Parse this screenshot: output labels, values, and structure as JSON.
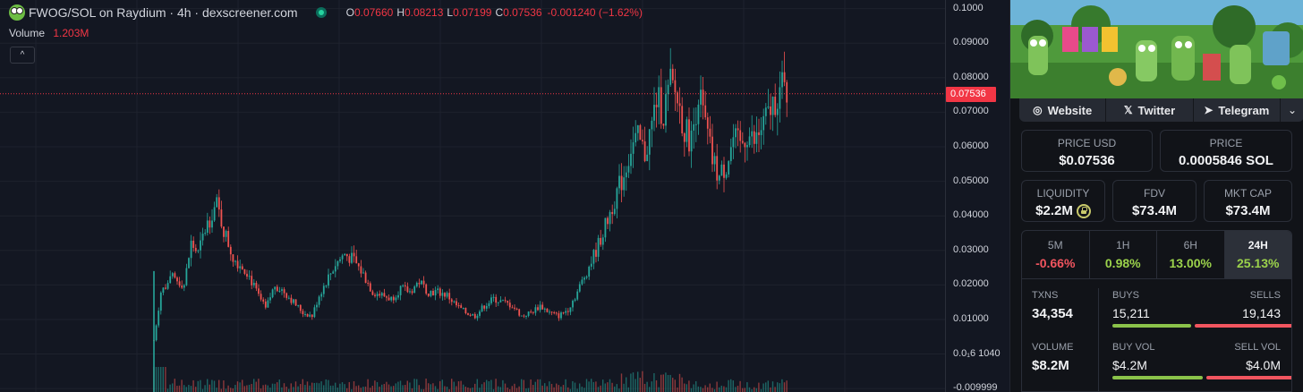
{
  "legend": {
    "pair_title": "FWOG/SOL on Raydium · 4h · dexscreener.com",
    "ohlc": [
      {
        "key": "O",
        "value": "0.07660"
      },
      {
        "key": "H",
        "value": "0.08213"
      },
      {
        "key": "L",
        "value": "0.07199"
      },
      {
        "key": "C",
        "value": "0.07536"
      }
    ],
    "change": "-0.001240 (−1.62%)",
    "volume_label": "Volume",
    "volume_value": "1.203M",
    "collapse_icon": "chevron-up-icon",
    "collapse_glyph": "^"
  },
  "axis": {
    "current_price": "0.07536",
    "ticks": [
      {
        "label": "0.1000",
        "v": 0.1
      },
      {
        "label": "0.09000",
        "v": 0.09
      },
      {
        "label": "0.08000",
        "v": 0.08
      },
      {
        "label": "0.07000",
        "v": 0.07
      },
      {
        "label": "0.06000",
        "v": 0.06
      },
      {
        "label": "0.05000",
        "v": 0.05
      },
      {
        "label": "0.04000",
        "v": 0.04
      },
      {
        "label": "0.03000",
        "v": 0.03
      },
      {
        "label": "0.02000",
        "v": 0.02
      },
      {
        "label": "0.01000",
        "v": 0.01
      },
      {
        "label": "0.0₁6 1040",
        "v": 0.0
      },
      {
        "label": "-0.009999",
        "v": -0.01
      }
    ]
  },
  "chart_data": {
    "type": "candlestick",
    "interval": "4h",
    "current_price": 0.07536,
    "ylim": [
      -0.011,
      0.1025
    ],
    "up_color": "#26a69a",
    "down_color": "#ef5350",
    "anchors": [
      [
        0,
        0.004
      ],
      [
        3,
        0.018
      ],
      [
        8,
        0.022
      ],
      [
        13,
        0.02
      ],
      [
        16,
        0.032
      ],
      [
        19,
        0.029
      ],
      [
        22,
        0.036
      ],
      [
        25,
        0.041
      ],
      [
        27,
        0.043
      ],
      [
        30,
        0.036
      ],
      [
        34,
        0.028
      ],
      [
        40,
        0.024
      ],
      [
        44,
        0.018
      ],
      [
        48,
        0.013
      ],
      [
        52,
        0.02
      ],
      [
        56,
        0.018
      ],
      [
        60,
        0.015
      ],
      [
        64,
        0.012
      ],
      [
        68,
        0.011
      ],
      [
        71,
        0.017
      ],
      [
        74,
        0.021
      ],
      [
        78,
        0.026
      ],
      [
        82,
        0.029
      ],
      [
        86,
        0.027
      ],
      [
        90,
        0.023
      ],
      [
        94,
        0.018
      ],
      [
        98,
        0.017
      ],
      [
        102,
        0.016
      ],
      [
        106,
        0.019
      ],
      [
        110,
        0.018
      ],
      [
        114,
        0.021
      ],
      [
        118,
        0.018
      ],
      [
        122,
        0.018
      ],
      [
        126,
        0.017
      ],
      [
        130,
        0.014
      ],
      [
        134,
        0.012
      ],
      [
        138,
        0.011
      ],
      [
        142,
        0.014
      ],
      [
        146,
        0.016
      ],
      [
        150,
        0.015
      ],
      [
        154,
        0.014
      ],
      [
        158,
        0.011
      ],
      [
        162,
        0.012
      ],
      [
        166,
        0.014
      ],
      [
        170,
        0.012
      ],
      [
        174,
        0.011
      ],
      [
        178,
        0.013
      ],
      [
        182,
        0.018
      ],
      [
        186,
        0.024
      ],
      [
        190,
        0.03
      ],
      [
        194,
        0.037
      ],
      [
        198,
        0.045
      ],
      [
        202,
        0.052
      ],
      [
        205,
        0.06
      ],
      [
        208,
        0.062
      ],
      [
        211,
        0.058
      ],
      [
        214,
        0.066
      ],
      [
        216,
        0.074
      ],
      [
        219,
        0.07
      ],
      [
        222,
        0.078
      ],
      [
        225,
        0.074
      ],
      [
        228,
        0.065
      ],
      [
        231,
        0.062
      ],
      [
        234,
        0.076
      ],
      [
        237,
        0.066
      ],
      [
        240,
        0.056
      ],
      [
        243,
        0.051
      ],
      [
        246,
        0.055
      ],
      [
        249,
        0.062
      ],
      [
        252,
        0.06
      ],
      [
        255,
        0.064
      ],
      [
        258,
        0.061
      ],
      [
        261,
        0.065
      ],
      [
        264,
        0.069
      ],
      [
        267,
        0.074
      ],
      [
        270,
        0.077
      ],
      [
        272,
        0.07536
      ]
    ]
  },
  "panel": {
    "links": [
      {
        "icon": "globe-icon",
        "glyph": "◎",
        "label": "Website"
      },
      {
        "icon": "x-logo-icon",
        "glyph": "𝕏",
        "label": "Twitter"
      },
      {
        "icon": "telegram-icon",
        "glyph": "➤",
        "label": "Telegram"
      }
    ],
    "more_glyph": "⌄",
    "price_usd_label": "PRICE USD",
    "price_usd": "$0.07536",
    "price_label": "PRICE",
    "price_sol": "0.0005846 SOL",
    "liquidity_label": "LIQUIDITY",
    "liquidity": "$2.2M",
    "fdv_label": "FDV",
    "fdv": "$73.4M",
    "mktcap_label": "MKT CAP",
    "mktcap": "$73.4M",
    "timeframes": [
      {
        "label": "5M",
        "value": "-0.66%",
        "sign": "neg"
      },
      {
        "label": "1H",
        "value": "0.98%",
        "sign": "pos"
      },
      {
        "label": "6H",
        "value": "13.00%",
        "sign": "pos"
      },
      {
        "label": "24H",
        "value": "25.13%",
        "sign": "pos",
        "active": true
      }
    ],
    "txns_label": "TXNS",
    "txns": "34,354",
    "buys_label": "BUYS",
    "buys": "15,211",
    "sells_label": "SELLS",
    "sells": "19,143",
    "buys_fraction": 0.443,
    "volume_label": "VOLUME",
    "volume": "$8.2M",
    "buy_vol_label": "BUY VOL",
    "buy_vol": "$4.2M",
    "sell_vol_label": "SELL VOL",
    "sell_vol": "$4.0M",
    "buy_vol_fraction": 0.512,
    "buy_color": "#8bc34a",
    "sell_color": "#f2555f"
  }
}
